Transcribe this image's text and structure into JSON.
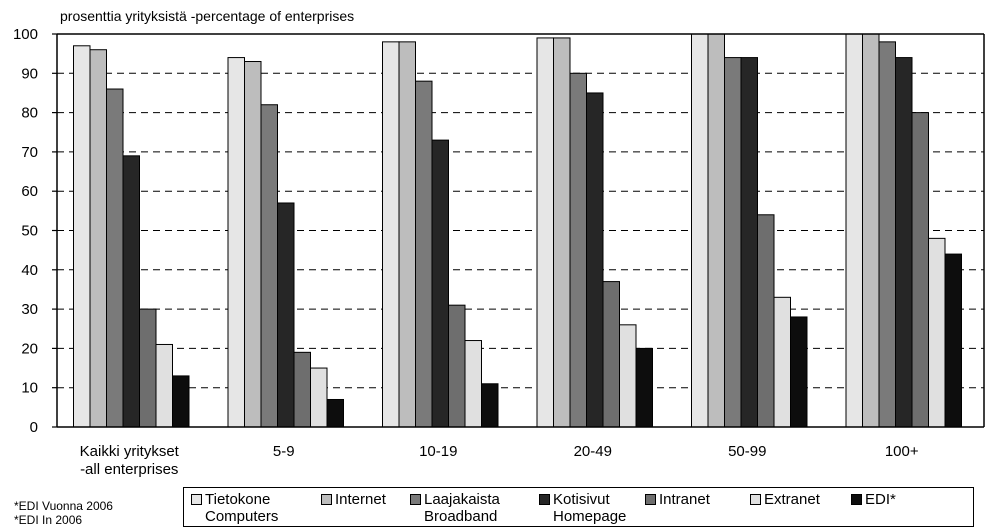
{
  "chart_data": {
    "type": "bar",
    "ylabel": "prosenttia yrityksistä -percentage of enterprises",
    "ylim": [
      0,
      100
    ],
    "yticks": [
      0,
      10,
      20,
      30,
      40,
      50,
      60,
      70,
      80,
      90,
      100
    ],
    "grid": "horizontal dashed",
    "categories": [
      [
        "Kaikki yritykset",
        "-all enterprises"
      ],
      [
        "5-9"
      ],
      [
        "10-19"
      ],
      [
        "20-49"
      ],
      [
        "50-99"
      ],
      [
        "100+"
      ]
    ],
    "series": [
      {
        "name": "Tietokone Computers",
        "label_lines": [
          "Tietokone",
          "Computers"
        ],
        "color": "#e6e6e6",
        "values": [
          97,
          94,
          98,
          99,
          100,
          100
        ]
      },
      {
        "name": "Internet",
        "label_lines": [
          "Internet"
        ],
        "color": "#bdbdbd",
        "values": [
          96,
          93,
          98,
          99,
          100,
          100
        ]
      },
      {
        "name": "Laajakaista Broadband",
        "label_lines": [
          "Laajakaista",
          "Broadband"
        ],
        "color": "#7a7a7a",
        "values": [
          86,
          82,
          88,
          90,
          94,
          98
        ]
      },
      {
        "name": "Kotisivut Homepage",
        "label_lines": [
          "Kotisivut",
          "Homepage"
        ],
        "color": "#262626",
        "values": [
          69,
          57,
          73,
          85,
          94,
          94
        ]
      },
      {
        "name": "Intranet",
        "label_lines": [
          "Intranet"
        ],
        "color": "#6e6e6e",
        "values": [
          30,
          19,
          31,
          37,
          54,
          80
        ]
      },
      {
        "name": "Extranet",
        "label_lines": [
          "Extranet"
        ],
        "color": "#e0e0e0",
        "values": [
          21,
          15,
          22,
          26,
          33,
          48
        ]
      },
      {
        "name": "EDI*",
        "label_lines": [
          "EDI*"
        ],
        "color": "#0d0d0d",
        "values": [
          13,
          7,
          11,
          20,
          28,
          44
        ]
      }
    ],
    "legend_position": "bottom",
    "footnotes": [
      "*EDI Vuonna 2006",
      "*EDI In 2006"
    ]
  }
}
